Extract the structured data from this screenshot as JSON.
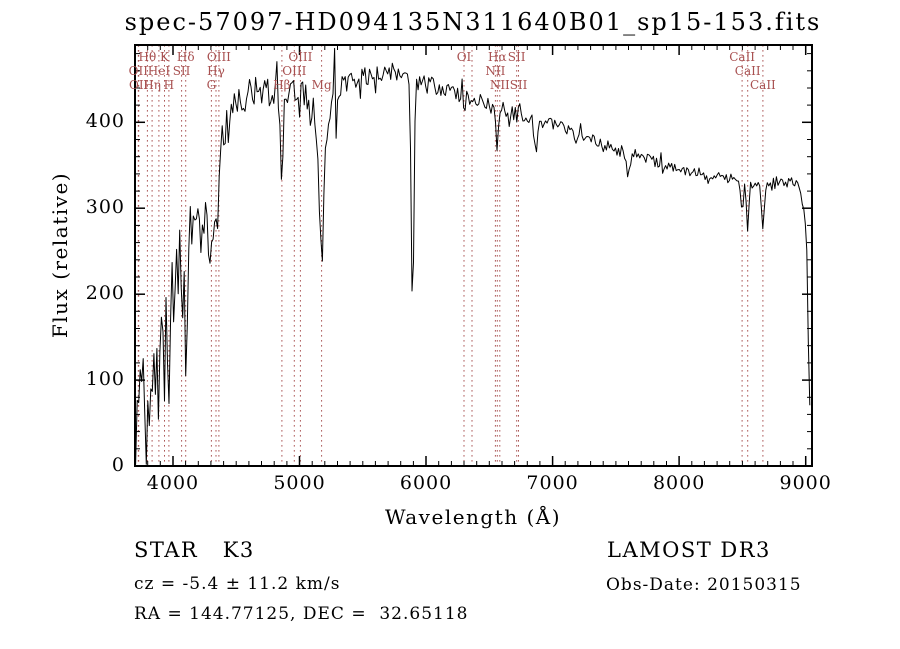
{
  "title": "spec-57097-HD094135N311640B01_sp15-153.fits",
  "chart_data": {
    "type": "line",
    "title": "spec-57097-HD094135N311640B01_sp15-153.fits",
    "xlabel": "Wavelength (Å)",
    "ylabel": "Flux (relative)",
    "xlim": [
      3700,
      9050
    ],
    "ylim": [
      0,
      490
    ],
    "xticks": [
      4000,
      5000,
      6000,
      7000,
      8000,
      9000
    ],
    "yticks": [
      0,
      100,
      200,
      300,
      400
    ],
    "x_minor_step": 100,
    "y_minor_step": 20,
    "grid": false,
    "legend": "none",
    "line_color": "#000000",
    "marker_color": "#a85050",
    "sample_step": 12,
    "x_start": 3705,
    "x_end": 9042,
    "seed": 20150315,
    "envelope": [
      [
        3705,
        8
      ],
      [
        3715,
        55
      ],
      [
        3725,
        35
      ],
      [
        3738,
        85
      ],
      [
        3750,
        60
      ],
      [
        3765,
        105
      ],
      [
        3778,
        75
      ],
      [
        3792,
        115
      ],
      [
        3806,
        90
      ],
      [
        3820,
        130
      ],
      [
        3838,
        105
      ],
      [
        3856,
        145
      ],
      [
        3874,
        120
      ],
      [
        3892,
        160
      ],
      [
        3910,
        175
      ],
      [
        3928,
        150
      ],
      [
        3946,
        185
      ],
      [
        3962,
        160
      ],
      [
        3980,
        210
      ],
      [
        3996,
        185
      ],
      [
        4014,
        235
      ],
      [
        4032,
        210
      ],
      [
        4052,
        245
      ],
      [
        4072,
        225
      ],
      [
        4092,
        240
      ],
      [
        4112,
        225
      ],
      [
        4132,
        260
      ],
      [
        4155,
        280
      ],
      [
        4180,
        265
      ],
      [
        4205,
        290
      ],
      [
        4230,
        278
      ],
      [
        4258,
        302
      ],
      [
        4285,
        288
      ],
      [
        4312,
        306
      ],
      [
        4338,
        296
      ],
      [
        4362,
        330
      ],
      [
        4388,
        360
      ],
      [
        4415,
        385
      ],
      [
        4442,
        402
      ],
      [
        4470,
        415
      ],
      [
        4500,
        425
      ],
      [
        4535,
        420
      ],
      [
        4570,
        432
      ],
      [
        4610,
        440
      ],
      [
        4650,
        438
      ],
      [
        4690,
        428
      ],
      [
        4730,
        436
      ],
      [
        4770,
        430
      ],
      [
        4810,
        437
      ],
      [
        4850,
        426
      ],
      [
        4885,
        430
      ],
      [
        4925,
        437
      ],
      [
        4965,
        441
      ],
      [
        5005,
        442
      ],
      [
        5045,
        431
      ],
      [
        5085,
        424
      ],
      [
        5125,
        404
      ],
      [
        5160,
        382
      ],
      [
        5200,
        392
      ],
      [
        5245,
        422
      ],
      [
        5290,
        436
      ],
      [
        5335,
        443
      ],
      [
        5380,
        448
      ],
      [
        5430,
        450
      ],
      [
        5480,
        452
      ],
      [
        5530,
        454
      ],
      [
        5580,
        452
      ],
      [
        5630,
        457
      ],
      [
        5680,
        455
      ],
      [
        5730,
        459
      ],
      [
        5780,
        462
      ],
      [
        5830,
        458
      ],
      [
        5880,
        452
      ],
      [
        5930,
        449
      ],
      [
        5980,
        446
      ],
      [
        6040,
        443
      ],
      [
        6100,
        440
      ],
      [
        6160,
        437
      ],
      [
        6220,
        434
      ],
      [
        6280,
        431
      ],
      [
        6340,
        429
      ],
      [
        6400,
        426
      ],
      [
        6460,
        423
      ],
      [
        6520,
        419
      ],
      [
        6580,
        416
      ],
      [
        6640,
        413
      ],
      [
        6700,
        410
      ],
      [
        6760,
        407
      ],
      [
        6820,
        404
      ],
      [
        6880,
        401
      ],
      [
        6940,
        400
      ],
      [
        7000,
        398
      ],
      [
        7070,
        394
      ],
      [
        7140,
        390
      ],
      [
        7210,
        386
      ],
      [
        7280,
        381
      ],
      [
        7350,
        377
      ],
      [
        7420,
        373
      ],
      [
        7490,
        369
      ],
      [
        7560,
        366
      ],
      [
        7630,
        363
      ],
      [
        7700,
        360
      ],
      [
        7770,
        356
      ],
      [
        7840,
        353
      ],
      [
        7910,
        350
      ],
      [
        7980,
        347
      ],
      [
        8050,
        344
      ],
      [
        8120,
        342
      ],
      [
        8190,
        340
      ],
      [
        8260,
        338
      ],
      [
        8330,
        336
      ],
      [
        8400,
        334
      ],
      [
        8470,
        332
      ],
      [
        8540,
        329
      ],
      [
        8610,
        328
      ],
      [
        8680,
        327
      ],
      [
        8750,
        329
      ],
      [
        8820,
        331
      ],
      [
        8880,
        333
      ],
      [
        8930,
        327
      ],
      [
        8965,
        316
      ],
      [
        8990,
        303
      ],
      [
        9008,
        252
      ],
      [
        9022,
        150
      ],
      [
        9034,
        75
      ],
      [
        9042,
        50
      ]
    ],
    "absorption_lines": [
      [
        3798,
        8,
        45
      ],
      [
        3835,
        8,
        45
      ],
      [
        3889,
        8,
        40
      ],
      [
        3933,
        9,
        70
      ],
      [
        3968,
        9,
        70
      ],
      [
        4101,
        9,
        75
      ],
      [
        4227,
        8,
        30
      ],
      [
        4304,
        12,
        55
      ],
      [
        4340,
        9,
        45
      ],
      [
        4861,
        9,
        115
      ],
      [
        5175,
        16,
        150
      ],
      [
        5893,
        11,
        265
      ],
      [
        6300,
        7,
        18
      ],
      [
        6363,
        7,
        12
      ],
      [
        6563,
        9,
        55
      ],
      [
        6870,
        14,
        30
      ],
      [
        7190,
        10,
        15
      ],
      [
        7600,
        16,
        25
      ],
      [
        8230,
        9,
        12
      ],
      [
        8498,
        9,
        35
      ],
      [
        8542,
        10,
        48
      ],
      [
        8662,
        10,
        45
      ]
    ],
    "noise_segments": [
      [
        3700,
        3800,
        45
      ],
      [
        3800,
        4150,
        58
      ],
      [
        4150,
        4460,
        38
      ],
      [
        4460,
        5150,
        20
      ],
      [
        5150,
        5360,
        24
      ],
      [
        5360,
        6060,
        11
      ],
      [
        6060,
        6900,
        9
      ],
      [
        6900,
        7700,
        7
      ],
      [
        7700,
        8600,
        6
      ],
      [
        8600,
        9010,
        8
      ],
      [
        9010,
        9050,
        14
      ]
    ],
    "spectral_lines": [
      {
        "wavelength": 3726,
        "label": "OII",
        "row": 2
      },
      {
        "wavelength": 3729,
        "label": "OII",
        "row": 3
      },
      {
        "wavelength": 3798,
        "label": "Hθ",
        "row": 1
      },
      {
        "wavelength": 3835,
        "label": "Hη",
        "row": 3
      },
      {
        "wavelength": 3889,
        "label": "HeI",
        "row": 2
      },
      {
        "wavelength": 3933,
        "label": "K",
        "row": 1
      },
      {
        "wavelength": 3968,
        "label": "H",
        "row": 3
      },
      {
        "wavelength": 4068,
        "label": "SII",
        "row": 2
      },
      {
        "wavelength": 4101,
        "label": "Hδ",
        "row": 1
      },
      {
        "wavelength": 4304,
        "label": "G",
        "row": 3
      },
      {
        "wavelength": 4340,
        "label": "Hγ",
        "row": 2
      },
      {
        "wavelength": 4363,
        "label": "OIII",
        "row": 1
      },
      {
        "wavelength": 4861,
        "label": "Hβ",
        "row": 3
      },
      {
        "wavelength": 4959,
        "label": "OIII",
        "row": 2
      },
      {
        "wavelength": 5007,
        "label": "OIII",
        "row": 1
      },
      {
        "wavelength": 5175,
        "label": "Mg",
        "row": 3
      },
      {
        "wavelength": 6300,
        "label": "OI",
        "row": 1
      },
      {
        "wavelength": 6363,
        "label": "",
        "row": 0
      },
      {
        "wavelength": 6548,
        "label": "NII",
        "row": 2
      },
      {
        "wavelength": 6563,
        "label": "Hα",
        "row": 1
      },
      {
        "wavelength": 6583,
        "label": "NII",
        "row": 3
      },
      {
        "wavelength": 6716,
        "label": "SII",
        "row": 1
      },
      {
        "wavelength": 6731,
        "label": "SII",
        "row": 3
      },
      {
        "wavelength": 8498,
        "label": "CaII",
        "row": 1
      },
      {
        "wavelength": 8542,
        "label": "CaII",
        "row": 2
      },
      {
        "wavelength": 8662,
        "label": "CaII",
        "row": 3
      }
    ]
  },
  "footer": {
    "class_label": "STAR   K3",
    "survey": "LAMOST DR3",
    "cz": "cz = -5.4 ± 11.2 km/s",
    "obs_date": "Obs-Date: 20150315",
    "ra_dec": "RA = 144.77125, DEC =  32.65118"
  }
}
